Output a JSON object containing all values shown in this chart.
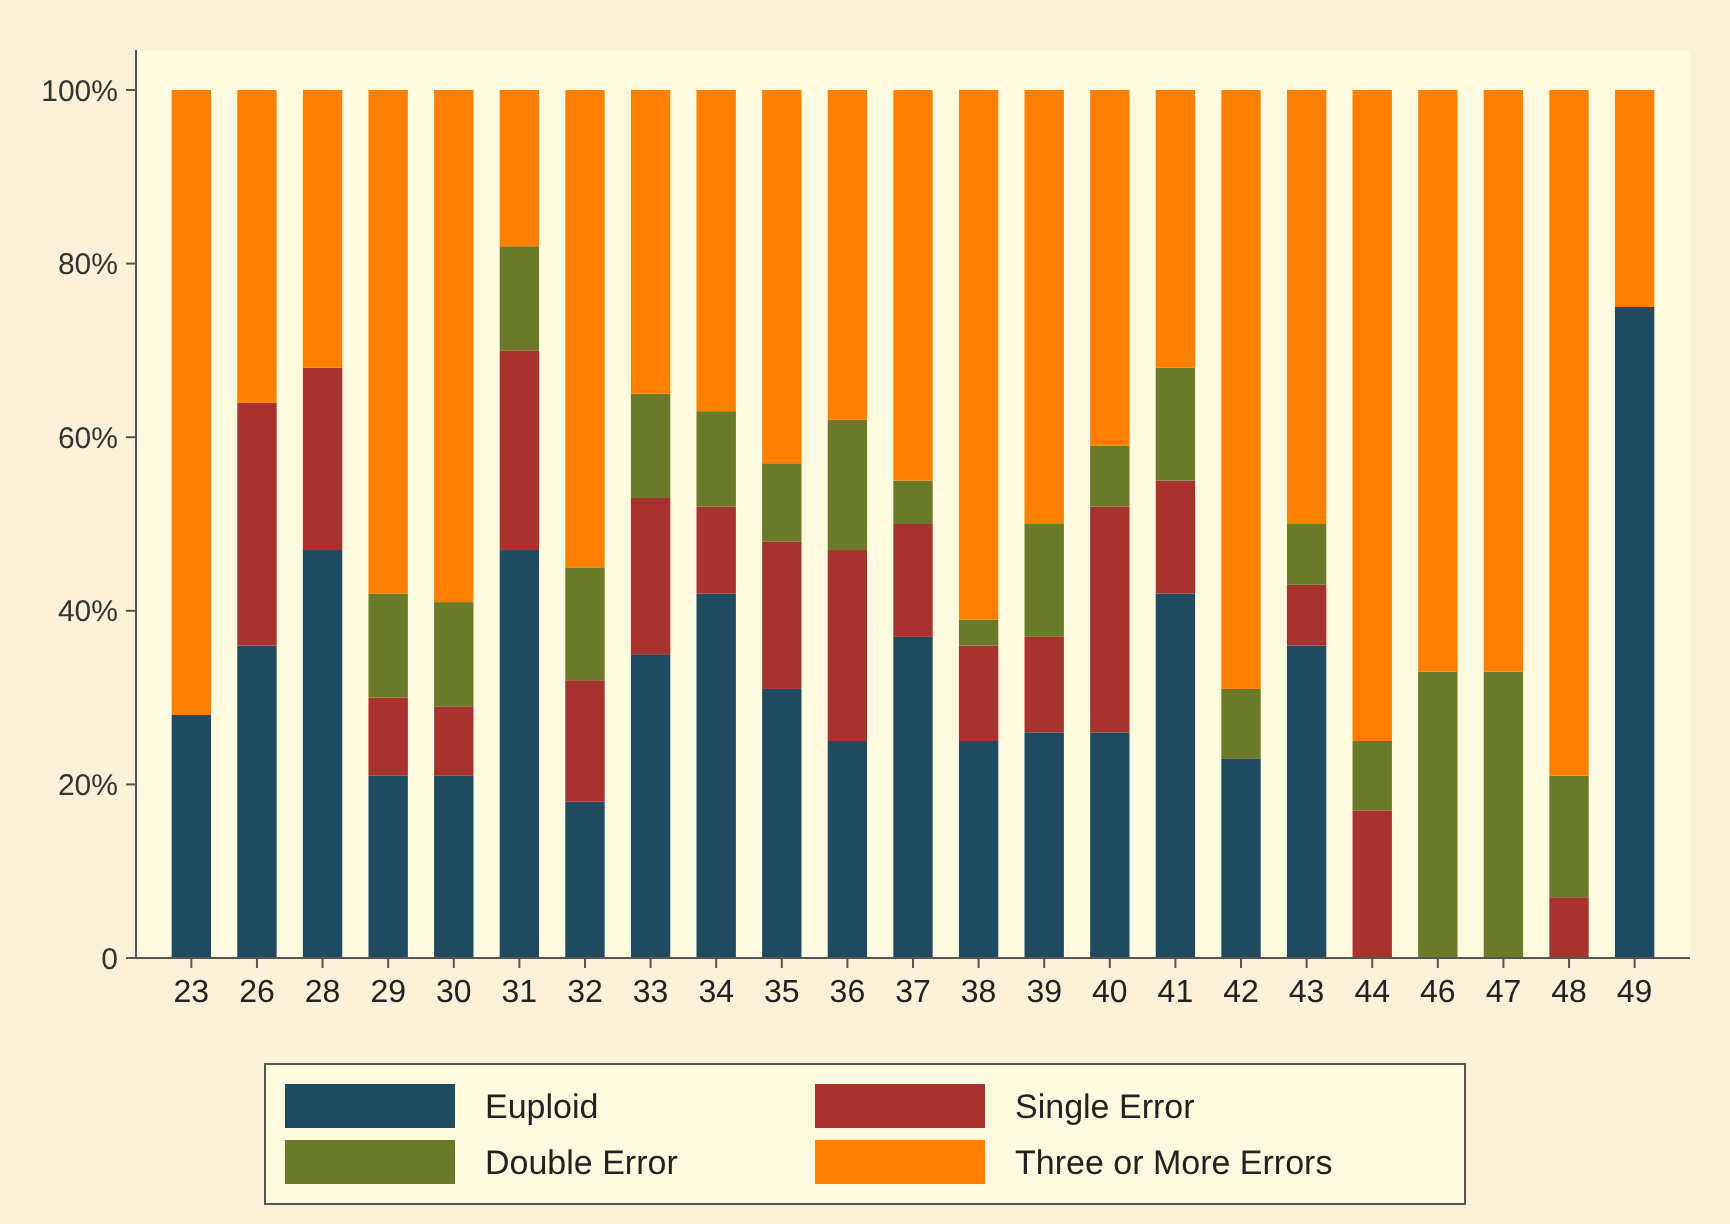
{
  "chart_data": {
    "type": "bar",
    "stacked": true,
    "categories": [
      "23",
      "26",
      "28",
      "29",
      "30",
      "31",
      "32",
      "33",
      "34",
      "35",
      "36",
      "37",
      "38",
      "39",
      "40",
      "41",
      "42",
      "43",
      "44",
      "46",
      "47",
      "48",
      "49"
    ],
    "series": [
      {
        "name": "Euploid",
        "color": "#1f4a60",
        "values": [
          28,
          36,
          47,
          21,
          21,
          47,
          18,
          35,
          42,
          31,
          25,
          37,
          25,
          26,
          26,
          42,
          23,
          36,
          0,
          0,
          0,
          0,
          75
        ]
      },
      {
        "name": "Single Error",
        "color": "#a8322e",
        "values": [
          0,
          28,
          21,
          9,
          8,
          23,
          14,
          18,
          10,
          17,
          22,
          13,
          11,
          11,
          26,
          13,
          0,
          7,
          17,
          0,
          0,
          7,
          0
        ]
      },
      {
        "name": "Double Error",
        "color": "#6a7a28",
        "values": [
          0,
          0,
          0,
          12,
          12,
          12,
          13,
          12,
          11,
          9,
          15,
          5,
          3,
          13,
          7,
          13,
          8,
          7,
          8,
          33,
          33,
          14,
          0
        ]
      },
      {
        "name": "Three or More Errors",
        "color": "#ff8000",
        "values": [
          72,
          36,
          32,
          58,
          59,
          18,
          55,
          35,
          37,
          43,
          38,
          45,
          61,
          50,
          41,
          32,
          69,
          50,
          75,
          67,
          67,
          79,
          25
        ]
      }
    ],
    "ylim": [
      0,
      100
    ],
    "yticks": [
      0,
      {
        "value": 20,
        "label": "20%"
      },
      {
        "value": 40,
        "label": "40%"
      },
      {
        "value": 60,
        "label": "60%"
      },
      {
        "value": 80,
        "label": "80%"
      },
      {
        "value": 100,
        "label": "100%"
      }
    ],
    "legend": "bottom"
  }
}
